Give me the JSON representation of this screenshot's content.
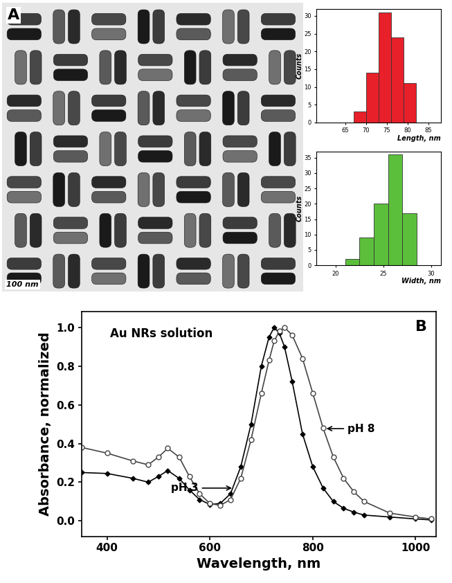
{
  "chart_data": [
    {
      "type": "image",
      "panel_label": "A",
      "scale_bar": "100 nm"
    },
    {
      "type": "histogram",
      "bins": [
        67,
        70,
        73,
        76,
        79,
        82
      ],
      "counts": [
        3,
        14,
        31,
        24,
        11
      ],
      "color": "#e8202a",
      "xlabel": "Length, nm",
      "ylabel": "Counts",
      "xlim": [
        58,
        88
      ],
      "ylim": [
        0,
        32
      ],
      "xticks": [
        65,
        70,
        75,
        80,
        85
      ],
      "yticks": [
        0,
        5,
        10,
        15,
        20,
        25,
        30
      ]
    },
    {
      "type": "histogram",
      "bins": [
        21,
        22.5,
        24,
        25.5,
        27,
        28.5
      ],
      "counts": [
        2,
        9,
        20,
        36,
        17
      ],
      "color": "#5cbf3c",
      "xlabel": "Width, nm",
      "ylabel": "Counts",
      "xlim": [
        18,
        31
      ],
      "ylim": [
        0,
        37
      ],
      "xticks": [
        20,
        25,
        30
      ],
      "yticks": [
        0,
        5,
        10,
        15,
        20,
        25,
        30,
        35
      ]
    },
    {
      "type": "line",
      "panel_label": "B",
      "title": "Au NRs solution",
      "xlabel": "Wavelength, nm",
      "ylabel": "Absorbance, normalized",
      "x": [
        350,
        400,
        450,
        480,
        500,
        518,
        540,
        560,
        580,
        600,
        620,
        640,
        660,
        680,
        700,
        715,
        725,
        735,
        745,
        760,
        780,
        800,
        820,
        840,
        860,
        880,
        900,
        950,
        1000,
        1030
      ],
      "series": [
        {
          "name": "pH 3",
          "color": "#000000",
          "marker": "diamond",
          "values": [
            0.25,
            0.245,
            0.22,
            0.2,
            0.23,
            0.26,
            0.22,
            0.16,
            0.11,
            0.085,
            0.09,
            0.14,
            0.28,
            0.5,
            0.8,
            0.95,
            1.0,
            0.97,
            0.9,
            0.72,
            0.45,
            0.28,
            0.17,
            0.1,
            0.065,
            0.045,
            0.03,
            0.02,
            0.01,
            0.005
          ]
        },
        {
          "name": "pH 8",
          "color": "#444444",
          "marker": "open_circle",
          "values": [
            0.38,
            0.35,
            0.31,
            0.29,
            0.33,
            0.375,
            0.33,
            0.23,
            0.14,
            0.09,
            0.08,
            0.11,
            0.22,
            0.42,
            0.66,
            0.83,
            0.93,
            0.98,
            1.0,
            0.96,
            0.84,
            0.66,
            0.48,
            0.33,
            0.22,
            0.15,
            0.1,
            0.04,
            0.02,
            0.01
          ]
        }
      ],
      "xlim": [
        350,
        1040
      ],
      "ylim": [
        -0.08,
        1.08
      ],
      "xticks": [
        400,
        600,
        800,
        1000
      ],
      "yticks": [
        {
          "value": 0,
          "label": "0.0"
        },
        0.2,
        0.4,
        0.6,
        0.8,
        {
          "value": 1,
          "label": "1.0"
        }
      ]
    }
  ]
}
